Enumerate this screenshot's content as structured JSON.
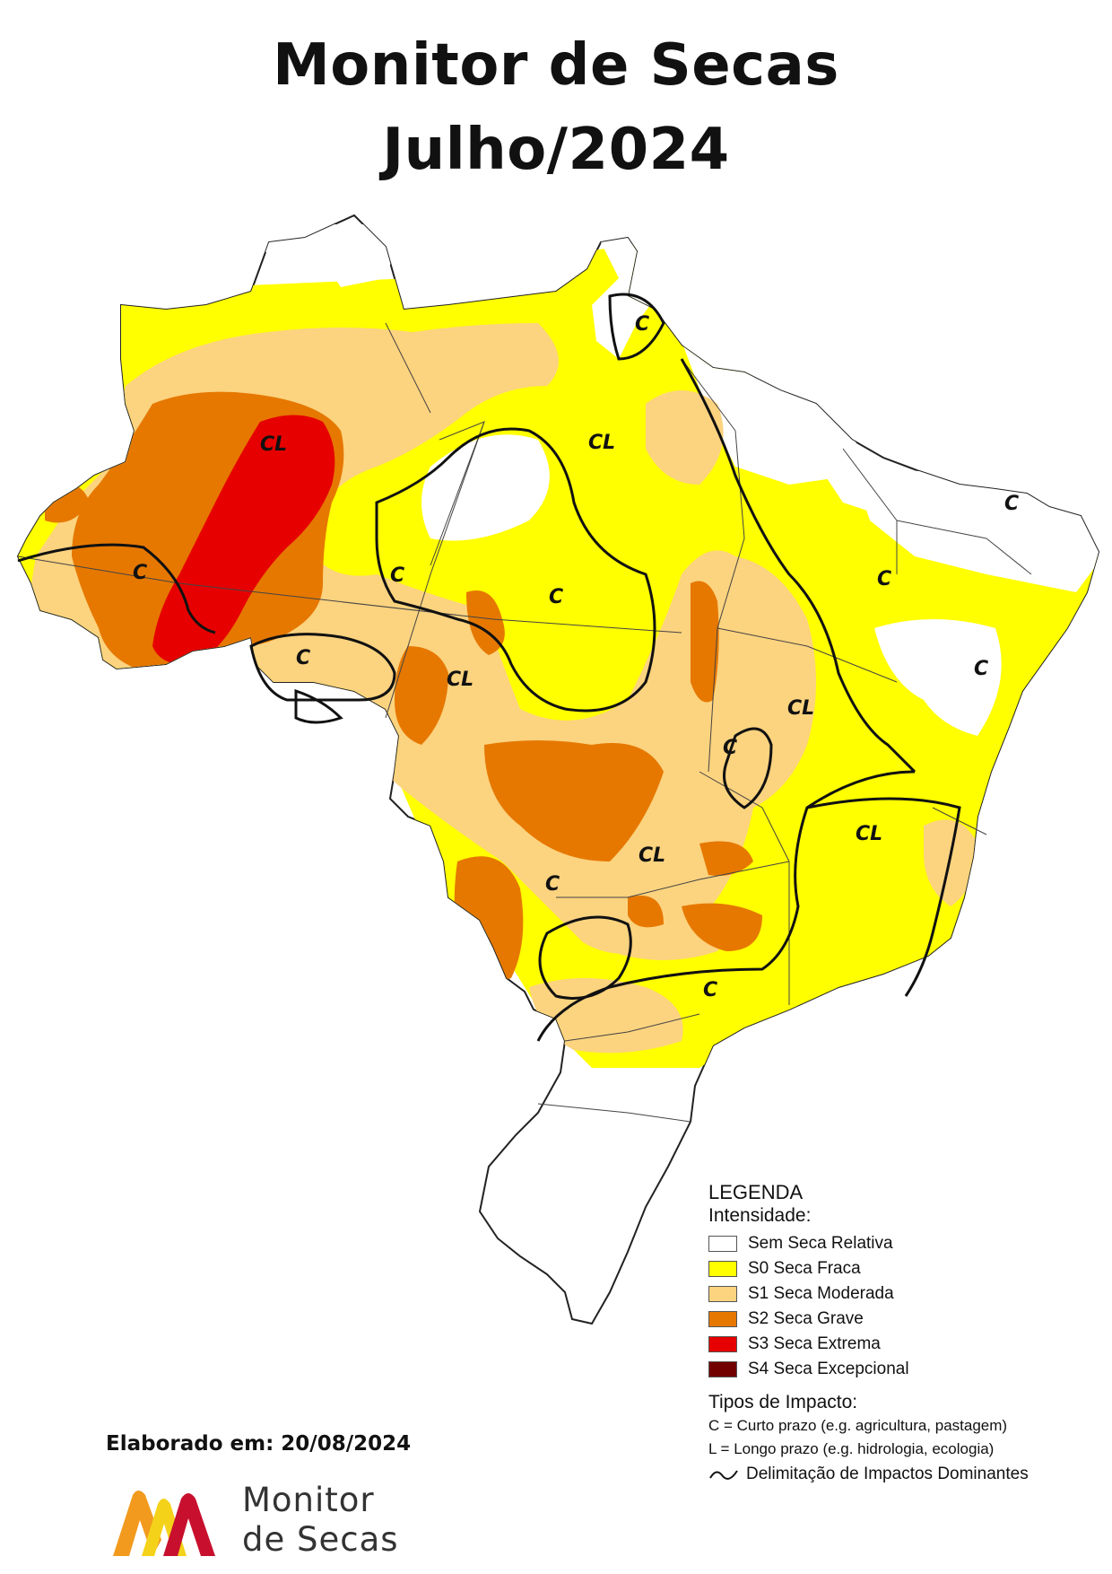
{
  "title": {
    "line1": "Monitor de Secas",
    "line2": "Julho/2024"
  },
  "colors": {
    "none": "#ffffff",
    "s0": "#ffff00",
    "s1": "#fcd37f",
    "s2": "#e67800",
    "s3": "#e60000",
    "s4": "#730000",
    "border": "#222222"
  },
  "impact_labels": [
    "CL",
    "CL",
    "C",
    "C",
    "C",
    "C",
    "CL",
    "C",
    "CL",
    "C",
    "C",
    "C",
    "C",
    "CL",
    "C",
    "CL",
    "C"
  ],
  "legend": {
    "title": "LEGENDA",
    "subtitle": "Intensidade:",
    "items": [
      {
        "label": "Sem Seca Relativa",
        "color": "#ffffff"
      },
      {
        "label": "S0 Seca Fraca",
        "color": "#ffff00"
      },
      {
        "label": "S1 Seca Moderada",
        "color": "#fcd37f"
      },
      {
        "label": "S2 Seca Grave",
        "color": "#e67800"
      },
      {
        "label": "S3 Seca Extrema",
        "color": "#e60000"
      },
      {
        "label": "S4 Seca Excepcional",
        "color": "#730000"
      }
    ],
    "impact_title": "Tipos de Impacto:",
    "impact_c": "C = Curto prazo (e.g. agricultura, pastagem)",
    "impact_l": "L = Longo prazo (e.g. hidrologia, ecologia)",
    "impact_line": "Delimitação de Impactos Dominantes"
  },
  "elaborado": "Elaborado em: 20/08/2024",
  "logo": {
    "line1": "Monitor",
    "line2": "de Secas"
  }
}
